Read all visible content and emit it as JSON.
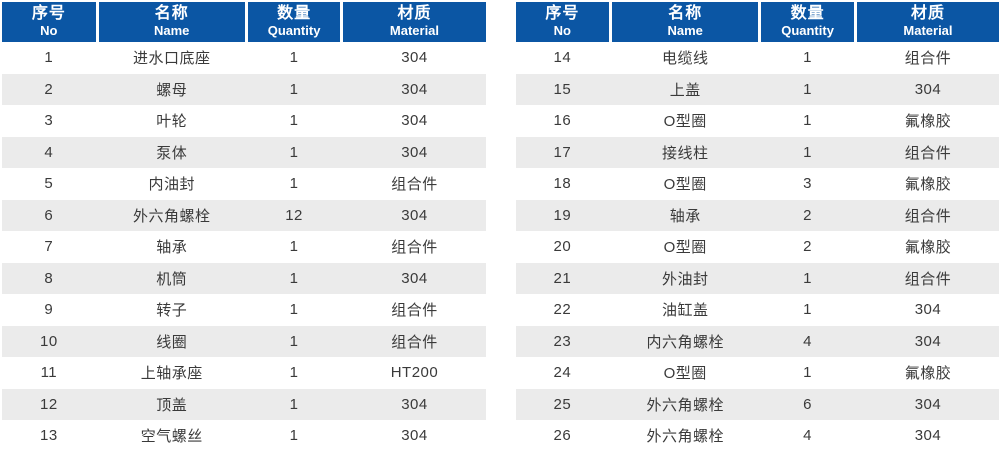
{
  "colors": {
    "header_bg": "#0b56a4",
    "stripe": "#ebebeb",
    "header_text": "#ffffff",
    "body_text": "#3a3a3a"
  },
  "headers": [
    {
      "zh": "序号",
      "en": "No"
    },
    {
      "zh": "名称",
      "en": "Name"
    },
    {
      "zh": "数量",
      "en": "Quantity"
    },
    {
      "zh": "材质",
      "en": "Material"
    }
  ],
  "tables": [
    {
      "rows": [
        [
          "1",
          "进水口底座",
          "1",
          "304"
        ],
        [
          "2",
          "螺母",
          "1",
          "304"
        ],
        [
          "3",
          "叶轮",
          "1",
          "304"
        ],
        [
          "4",
          "泵体",
          "1",
          "304"
        ],
        [
          "5",
          "内油封",
          "1",
          "组合件"
        ],
        [
          "6",
          "外六角螺栓",
          "12",
          "304"
        ],
        [
          "7",
          "轴承",
          "1",
          "组合件"
        ],
        [
          "8",
          "机筒",
          "1",
          "304"
        ],
        [
          "9",
          "转子",
          "1",
          "组合件"
        ],
        [
          "10",
          "线圈",
          "1",
          "组合件"
        ],
        [
          "11",
          "上轴承座",
          "1",
          "HT200"
        ],
        [
          "12",
          "顶盖",
          "1",
          "304"
        ],
        [
          "13",
          "空气螺丝",
          "1",
          "304"
        ]
      ]
    },
    {
      "rows": [
        [
          "14",
          "电缆线",
          "1",
          "组合件"
        ],
        [
          "15",
          "上盖",
          "1",
          "304"
        ],
        [
          "16",
          "O型圈",
          "1",
          "氟橡胶"
        ],
        [
          "17",
          "接线柱",
          "1",
          "组合件"
        ],
        [
          "18",
          "O型圈",
          "3",
          "氟橡胶"
        ],
        [
          "19",
          "轴承",
          "2",
          "组合件"
        ],
        [
          "20",
          "O型圈",
          "2",
          "氟橡胶"
        ],
        [
          "21",
          "外油封",
          "1",
          "组合件"
        ],
        [
          "22",
          "油缸盖",
          "1",
          "304"
        ],
        [
          "23",
          "内六角螺栓",
          "4",
          "304"
        ],
        [
          "24",
          "O型圈",
          "1",
          "氟橡胶"
        ],
        [
          "25",
          "外六角螺栓",
          "6",
          "304"
        ],
        [
          "26",
          "外六角螺栓",
          "4",
          "304"
        ]
      ]
    }
  ]
}
